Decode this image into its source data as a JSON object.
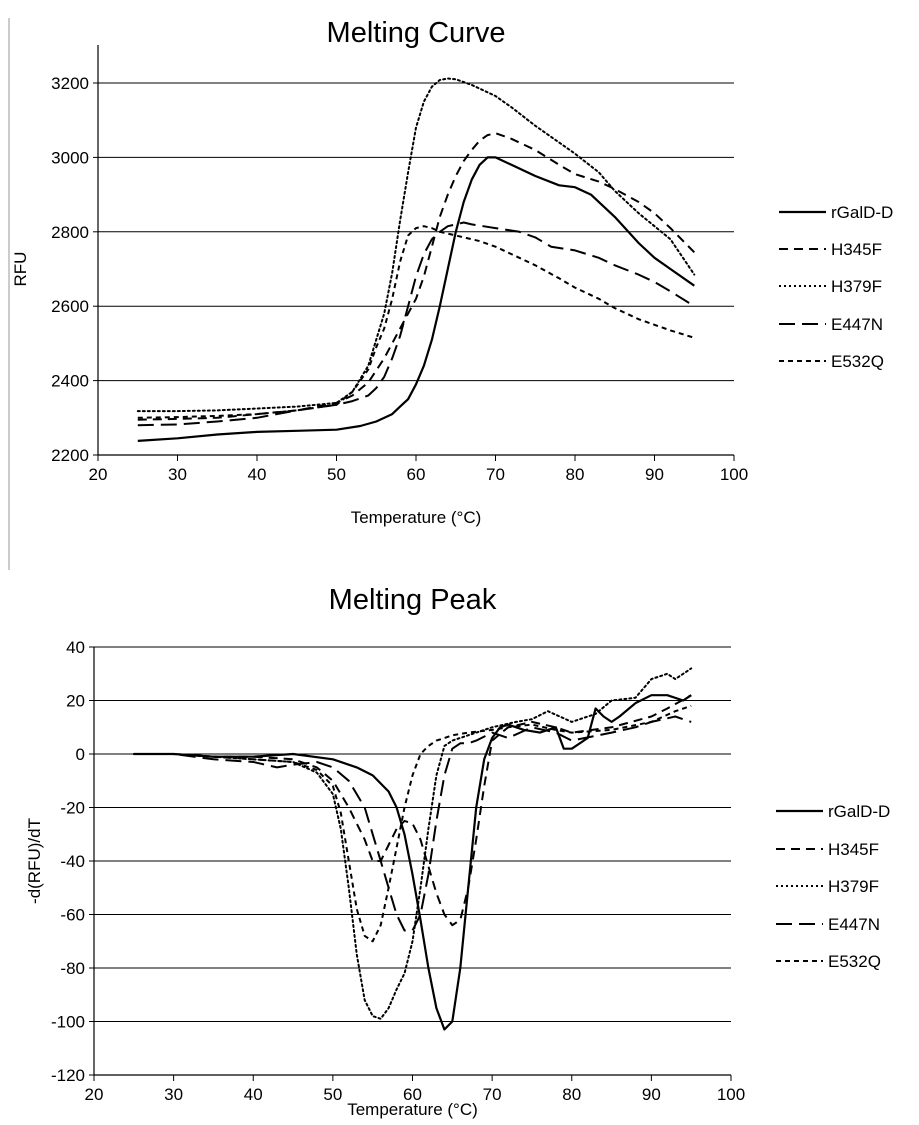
{
  "chart_data": [
    {
      "type": "line",
      "title": "Melting Curve",
      "xlabel": "Temperature (°C)",
      "ylabel": "RFU",
      "xlim": [
        20,
        100
      ],
      "ylim": [
        2200,
        3200
      ],
      "xticks": [
        20,
        30,
        40,
        50,
        60,
        70,
        80,
        90,
        100
      ],
      "yticks": [
        2200,
        2400,
        2600,
        2800,
        3000,
        3200
      ],
      "grid": "horizontal",
      "legend": "right",
      "series": [
        {
          "name": "rGalD-D",
          "dash": "solid",
          "x": [
            25,
            30,
            35,
            40,
            45,
            50,
            53,
            55,
            57,
            58,
            59,
            60,
            61,
            62,
            63,
            64,
            65,
            66,
            67,
            68,
            69,
            70,
            72,
            75,
            78,
            80,
            82,
            85,
            88,
            90,
            92,
            95
          ],
          "y": [
            2238,
            2245,
            2255,
            2262,
            2265,
            2268,
            2278,
            2290,
            2310,
            2330,
            2350,
            2390,
            2440,
            2510,
            2600,
            2700,
            2800,
            2880,
            2940,
            2980,
            3000,
            3000,
            2980,
            2950,
            2925,
            2920,
            2900,
            2840,
            2770,
            2730,
            2700,
            2655
          ]
        },
        {
          "name": "H345F",
          "dash": "medium",
          "x": [
            25,
            30,
            35,
            40,
            45,
            50,
            52,
            54,
            56,
            58,
            60,
            61,
            62,
            63,
            64,
            65,
            66,
            67,
            68,
            69,
            70,
            72,
            75,
            78,
            80,
            83,
            85,
            88,
            90,
            92,
            95
          ],
          "y": [
            2295,
            2297,
            2300,
            2310,
            2320,
            2340,
            2360,
            2395,
            2460,
            2540,
            2620,
            2680,
            2760,
            2840,
            2900,
            2950,
            2990,
            3020,
            3045,
            3060,
            3065,
            3050,
            3020,
            2980,
            2955,
            2935,
            2915,
            2880,
            2850,
            2810,
            2745
          ]
        },
        {
          "name": "H379F",
          "dash": "dotted",
          "x": [
            25,
            30,
            35,
            40,
            45,
            50,
            52,
            54,
            56,
            57,
            58,
            59,
            60,
            61,
            62,
            63,
            64,
            65,
            67,
            70,
            72,
            75,
            78,
            80,
            83,
            85,
            88,
            90,
            92,
            95
          ],
          "y": [
            2318,
            2318,
            2320,
            2325,
            2330,
            2340,
            2370,
            2440,
            2580,
            2690,
            2830,
            2960,
            3080,
            3150,
            3190,
            3208,
            3212,
            3210,
            3195,
            3165,
            3135,
            3085,
            3040,
            3010,
            2960,
            2910,
            2850,
            2815,
            2780,
            2685
          ]
        },
        {
          "name": "E447N",
          "dash": "long",
          "x": [
            25,
            30,
            35,
            40,
            45,
            50,
            52,
            54,
            55,
            56,
            57,
            58,
            59,
            60,
            61,
            62,
            63,
            64,
            65,
            66,
            67,
            70,
            73,
            75,
            77,
            80,
            83,
            85,
            88,
            90,
            92,
            95
          ],
          "y": [
            2280,
            2282,
            2290,
            2300,
            2320,
            2335,
            2345,
            2360,
            2380,
            2410,
            2460,
            2520,
            2600,
            2680,
            2740,
            2780,
            2800,
            2815,
            2820,
            2825,
            2820,
            2810,
            2800,
            2785,
            2760,
            2750,
            2730,
            2710,
            2685,
            2665,
            2640,
            2600
          ]
        },
        {
          "name": "E532Q",
          "dash": "short",
          "x": [
            25,
            30,
            35,
            40,
            45,
            50,
            52,
            54,
            55,
            56,
            57,
            58,
            59,
            60,
            61,
            62,
            63,
            65,
            68,
            70,
            72,
            75,
            78,
            80,
            83,
            85,
            88,
            90,
            92,
            95
          ],
          "y": [
            2300,
            2302,
            2305,
            2310,
            2320,
            2335,
            2370,
            2430,
            2490,
            2540,
            2620,
            2720,
            2790,
            2810,
            2815,
            2810,
            2800,
            2790,
            2775,
            2760,
            2740,
            2710,
            2675,
            2650,
            2620,
            2595,
            2565,
            2550,
            2535,
            2515
          ]
        }
      ]
    },
    {
      "type": "line",
      "title": "Melting Peak",
      "xlabel": "Temperature (°C)",
      "ylabel": "-d(RFU)/dT",
      "xlim": [
        20,
        100
      ],
      "ylim": [
        -120,
        40
      ],
      "xticks": [
        20,
        30,
        40,
        50,
        60,
        70,
        80,
        90,
        100
      ],
      "yticks": [
        -120,
        -100,
        -80,
        -60,
        -40,
        -20,
        0,
        20,
        40
      ],
      "grid": "horizontal",
      "legend": "right",
      "series": [
        {
          "name": "rGalD-D",
          "dash": "solid",
          "x": [
            25,
            28,
            30,
            35,
            40,
            45,
            50,
            53,
            55,
            57,
            58,
            59,
            60,
            61,
            62,
            63,
            64,
            65,
            66,
            67,
            68,
            69,
            70,
            71,
            72,
            74,
            76,
            78,
            79,
            80,
            82,
            83,
            84,
            85,
            86,
            88,
            90,
            92,
            94,
            95
          ],
          "y": [
            0,
            0,
            0,
            -1,
            -1,
            0,
            -2,
            -5,
            -8,
            -14,
            -20,
            -30,
            -45,
            -62,
            -80,
            -95,
            -103,
            -100,
            -80,
            -50,
            -20,
            -2,
            6,
            10,
            11,
            9,
            8,
            10,
            2,
            2,
            6,
            17,
            14,
            12,
            14,
            19,
            22,
            22,
            20,
            22
          ]
        },
        {
          "name": "H345F",
          "dash": "medium",
          "x": [
            25,
            30,
            35,
            40,
            45,
            48,
            50,
            52,
            54,
            55,
            56,
            57,
            58,
            59,
            60,
            61,
            62,
            63,
            64,
            65,
            66,
            67,
            68,
            69,
            70,
            72,
            75,
            78,
            80,
            85,
            90,
            92,
            95
          ],
          "y": [
            0,
            0,
            -1,
            -1,
            -2,
            -5,
            -10,
            -20,
            -32,
            -40,
            -40,
            -34,
            -28,
            -25,
            -26,
            -32,
            -42,
            -52,
            -60,
            -64,
            -62,
            -50,
            -32,
            -12,
            5,
            10,
            12,
            10,
            8,
            10,
            14,
            17,
            22
          ]
        },
        {
          "name": "H379F",
          "dash": "dotted",
          "x": [
            25,
            28,
            30,
            35,
            40,
            45,
            48,
            50,
            51,
            52,
            53,
            54,
            55,
            56,
            57,
            58,
            59,
            60,
            61,
            62,
            63,
            64,
            65,
            67,
            70,
            73,
            75,
            77,
            80,
            83,
            85,
            88,
            90,
            92,
            93,
            94,
            95
          ],
          "y": [
            0,
            0,
            0,
            -1,
            -2,
            -3,
            -7,
            -15,
            -28,
            -50,
            -75,
            -92,
            -98,
            -99,
            -95,
            -88,
            -82,
            -70,
            -50,
            -28,
            -8,
            3,
            5,
            7,
            10,
            12,
            13,
            16,
            12,
            15,
            20,
            21,
            28,
            30,
            28,
            30,
            32
          ]
        },
        {
          "name": "E447N",
          "dash": "long",
          "x": [
            25,
            30,
            35,
            40,
            43,
            45,
            48,
            50,
            52,
            54,
            55,
            56,
            57,
            58,
            59,
            60,
            61,
            62,
            63,
            64,
            65,
            66,
            67,
            68,
            70,
            72,
            75,
            78,
            80,
            85,
            88,
            90,
            93,
            95
          ],
          "y": [
            0,
            0,
            -2,
            -3,
            -5,
            -4,
            -3,
            -5,
            -10,
            -20,
            -30,
            -40,
            -50,
            -60,
            -66,
            -66,
            -60,
            -45,
            -25,
            -8,
            2,
            4,
            4,
            5,
            8,
            6,
            10,
            8,
            5,
            8,
            10,
            12,
            14,
            12
          ]
        },
        {
          "name": "E532Q",
          "dash": "short",
          "x": [
            25,
            30,
            35,
            40,
            45,
            48,
            50,
            51,
            52,
            53,
            54,
            55,
            56,
            57,
            58,
            59,
            60,
            61,
            62,
            63,
            64,
            65,
            67,
            70,
            72,
            75,
            78,
            80,
            85,
            90,
            93,
            95
          ],
          "y": [
            0,
            0,
            -1,
            -2,
            -3,
            -6,
            -12,
            -22,
            -40,
            -58,
            -68,
            -70,
            -64,
            -50,
            -35,
            -20,
            -8,
            0,
            3,
            5,
            6,
            7,
            8,
            9,
            10,
            11,
            9,
            8,
            9,
            12,
            16,
            18
          ]
        }
      ]
    }
  ]
}
